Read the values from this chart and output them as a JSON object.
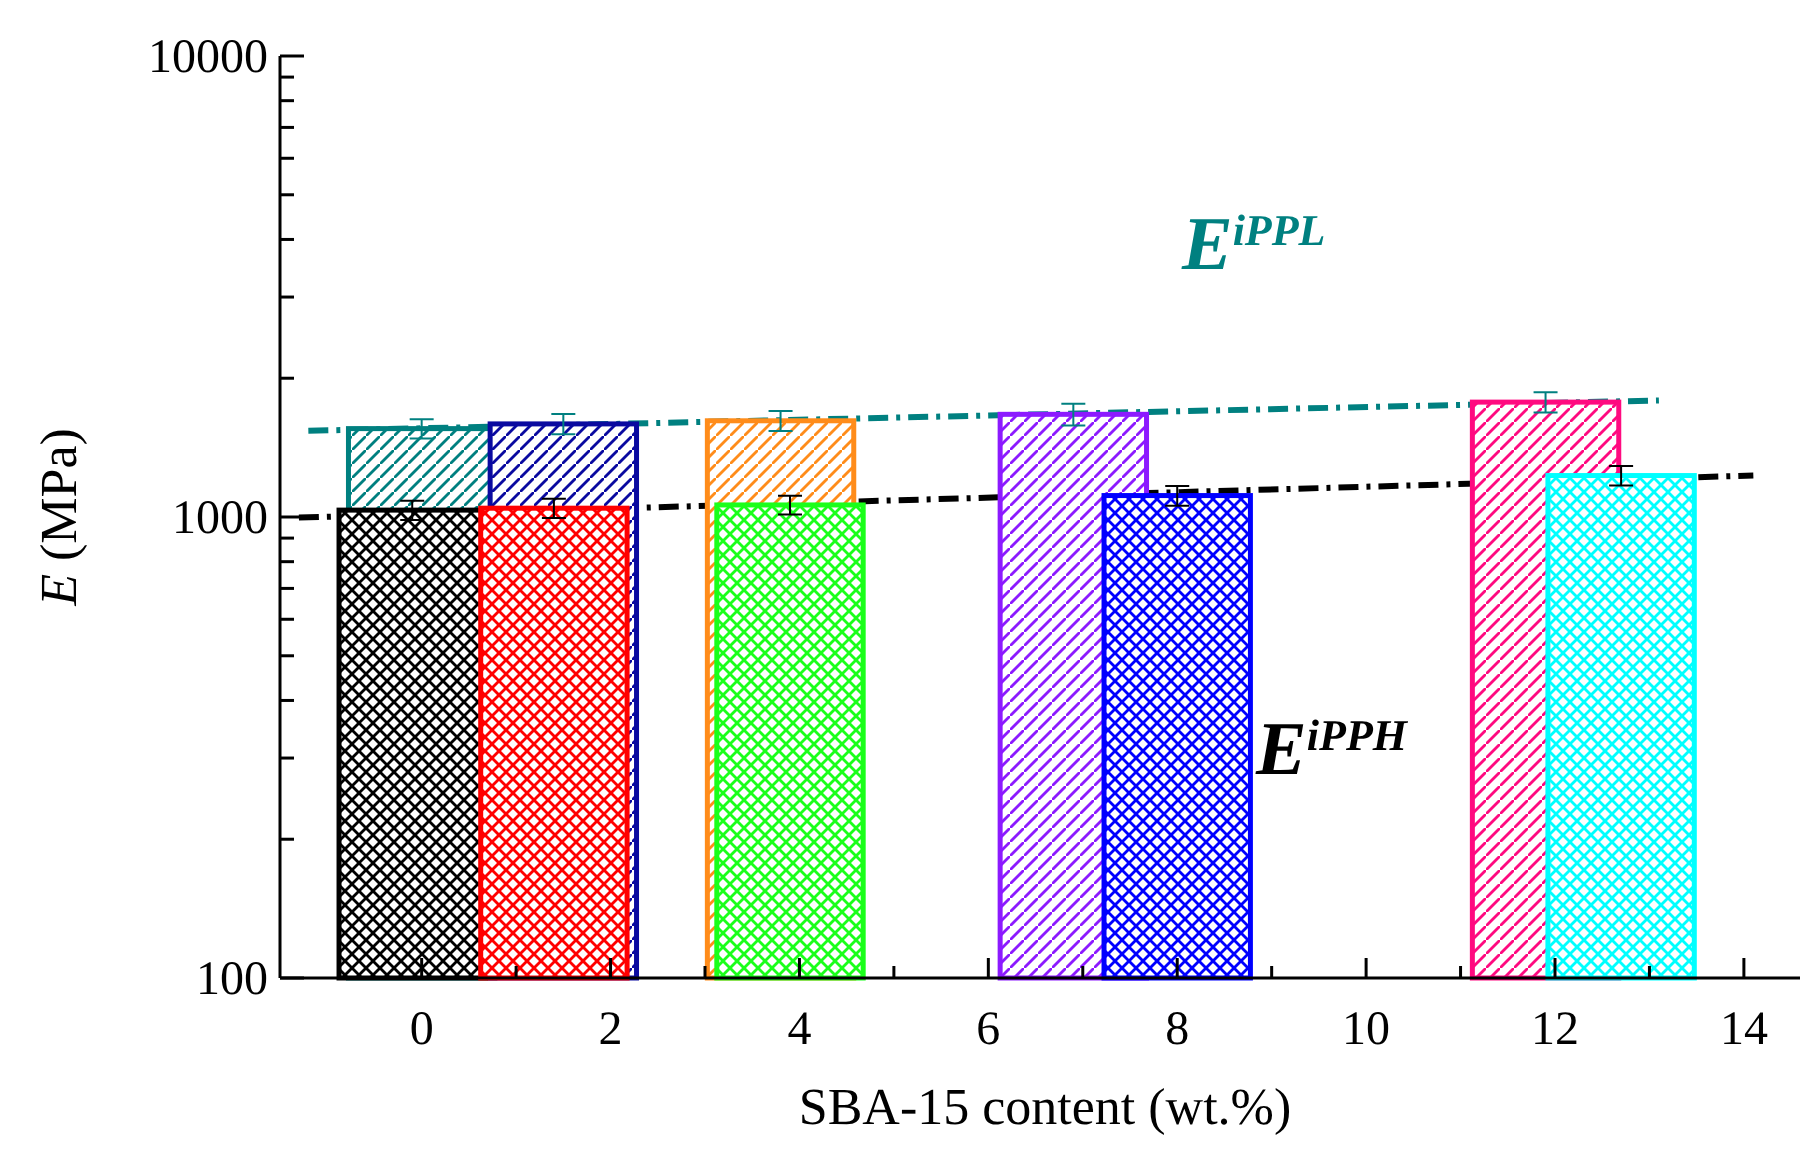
{
  "chart_data": {
    "type": "bar",
    "xlabel": "SBA-15 content (wt.%)",
    "ylabel": "E (MPa)",
    "log": "y",
    "xlim": [
      -1.5,
      14.7
    ],
    "ylim": [
      100,
      10000
    ],
    "xticks": [
      0,
      2,
      4,
      6,
      8,
      10,
      12,
      14,
      {
        "value": 1,
        "label": null
      },
      {
        "value": 3,
        "label": null
      },
      {
        "value": 5,
        "label": null
      },
      {
        "value": 7,
        "label": null
      },
      {
        "value": 9,
        "label": null
      },
      {
        "value": 11,
        "label": null
      },
      {
        "value": 13,
        "label": null
      }
    ],
    "yticks": [
      100,
      1000,
      10000,
      {
        "value": 200,
        "label": null
      },
      {
        "value": 300,
        "label": null
      },
      {
        "value": 400,
        "label": null
      },
      {
        "value": 500,
        "label": null
      },
      {
        "value": 600,
        "label": null
      },
      {
        "value": 700,
        "label": null
      },
      {
        "value": 800,
        "label": null
      },
      {
        "value": 900,
        "label": null
      },
      {
        "value": 2000,
        "label": null
      },
      {
        "value": 3000,
        "label": null
      },
      {
        "value": 4000,
        "label": null
      },
      {
        "value": 5000,
        "label": null
      },
      {
        "value": 6000,
        "label": null
      },
      {
        "value": 7000,
        "label": null
      },
      {
        "value": 8000,
        "label": null
      },
      {
        "value": 9000,
        "label": null
      }
    ],
    "series": [
      {
        "x": [
          0,
          1.5,
          3.8,
          6.9,
          11.9
        ],
        "values": [
          1555,
          1592,
          1617,
          1670,
          1775
        ],
        "errors": [
          75,
          80,
          80,
          90,
          90
        ],
        "color": "#008080",
        "colors": [
          "#008080",
          "#0a0aa0",
          "#ff8c1a",
          "#8c1aff",
          "#ff0a80"
        ]
      },
      {
        "x": [
          -0.1,
          1.4,
          3.9,
          8.0,
          12.7
        ],
        "values": [
          1035,
          1045,
          1062,
          1113,
          1230
        ],
        "errors": [
          50,
          50,
          50,
          55,
          60
        ],
        "color": "#000000",
        "colors": [
          "#000000",
          "#ff0000",
          "#1aff1a",
          "#0000ff",
          "#00ffff"
        ]
      },
      {
        "type": "line",
        "name": "E$^{iPPL}$",
        "x": [
          -1.2,
          13.1
        ],
        "values": [
          1538,
          1790
        ],
        "color": "#008080",
        "line_style": "dashdot"
      },
      {
        "type": "line",
        "name": "E$^{iPPH}$",
        "x": [
          -1.3,
          14.1
        ],
        "values": [
          997,
          1230
        ],
        "color": "#000000",
        "line_style": "dashdot"
      }
    ]
  }
}
